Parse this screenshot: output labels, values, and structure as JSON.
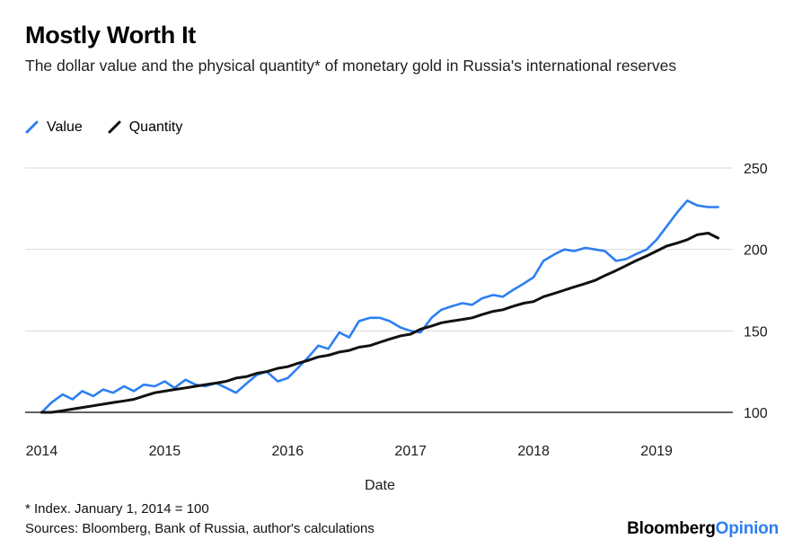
{
  "header": {
    "title": "Mostly Worth It",
    "subtitle": "The dollar value and the physical quantity* of monetary gold in Russia's international reserves"
  },
  "legend": [
    {
      "label": "Value",
      "color": "#2d7ff2"
    },
    {
      "label": "Quantity",
      "color": "#111111"
    }
  ],
  "footer": {
    "note": "* Index. January 1, 2014 = 100",
    "sources": "Sources: Bloomberg, Bank of Russia, author's calculations",
    "brand": {
      "black": "Bloomberg",
      "blue": "Opinion",
      "blue_color": "#2d7ff2"
    }
  },
  "chart_data": {
    "type": "line",
    "title": "Mostly Worth It",
    "xlabel": "Date",
    "ylabel": "",
    "ylim": [
      100,
      250
    ],
    "yticks": [
      100,
      150,
      200,
      250
    ],
    "xticks": [
      2014,
      2015,
      2016,
      2017,
      2018,
      2019
    ],
    "xlim": [
      2013.88,
      2019.62
    ],
    "grid": "horizontal",
    "legend_position": "top-left",
    "x": [
      2014.0,
      2014.08,
      2014.17,
      2014.25,
      2014.33,
      2014.42,
      2014.5,
      2014.58,
      2014.67,
      2014.75,
      2014.83,
      2014.92,
      2015.0,
      2015.08,
      2015.17,
      2015.25,
      2015.33,
      2015.42,
      2015.5,
      2015.58,
      2015.67,
      2015.75,
      2015.83,
      2015.92,
      2016.0,
      2016.08,
      2016.17,
      2016.25,
      2016.33,
      2016.42,
      2016.5,
      2016.58,
      2016.67,
      2016.75,
      2016.83,
      2016.92,
      2017.0,
      2017.08,
      2017.17,
      2017.25,
      2017.33,
      2017.42,
      2017.5,
      2017.58,
      2017.67,
      2017.75,
      2017.83,
      2017.92,
      2018.0,
      2018.08,
      2018.17,
      2018.25,
      2018.33,
      2018.42,
      2018.5,
      2018.58,
      2018.67,
      2018.75,
      2018.83,
      2018.92,
      2019.0,
      2019.08,
      2019.17,
      2019.25,
      2019.33,
      2019.42,
      2019.5
    ],
    "series": [
      {
        "name": "Value",
        "color": "#2d7ff2",
        "values": [
          100,
          106,
          111,
          108,
          113,
          110,
          114,
          112,
          116,
          113,
          117,
          116,
          119,
          115,
          120,
          117,
          116,
          118,
          115,
          112,
          118,
          123,
          125,
          119,
          121,
          127,
          134,
          141,
          139,
          149,
          146,
          156,
          158,
          158,
          156,
          152,
          150,
          149,
          158,
          163,
          165,
          167,
          166,
          170,
          172,
          171,
          175,
          179,
          183,
          193,
          197,
          200,
          199,
          201,
          200,
          199,
          193,
          194,
          197,
          200,
          206,
          214,
          223,
          230,
          227,
          226,
          226
        ]
      },
      {
        "name": "Quantity",
        "color": "#111111",
        "values": [
          100,
          100,
          101,
          102,
          103,
          104,
          105,
          106,
          107,
          108,
          110,
          112,
          113,
          114,
          115,
          116,
          117,
          118,
          119,
          121,
          122,
          124,
          125,
          127,
          128,
          130,
          132,
          134,
          135,
          137,
          138,
          140,
          141,
          143,
          145,
          147,
          148,
          151,
          153,
          155,
          156,
          157,
          158,
          160,
          162,
          163,
          165,
          167,
          168,
          171,
          173,
          175,
          177,
          179,
          181,
          184,
          187,
          190,
          193,
          196,
          199,
          202,
          204,
          206,
          209,
          210,
          207
        ]
      }
    ]
  }
}
